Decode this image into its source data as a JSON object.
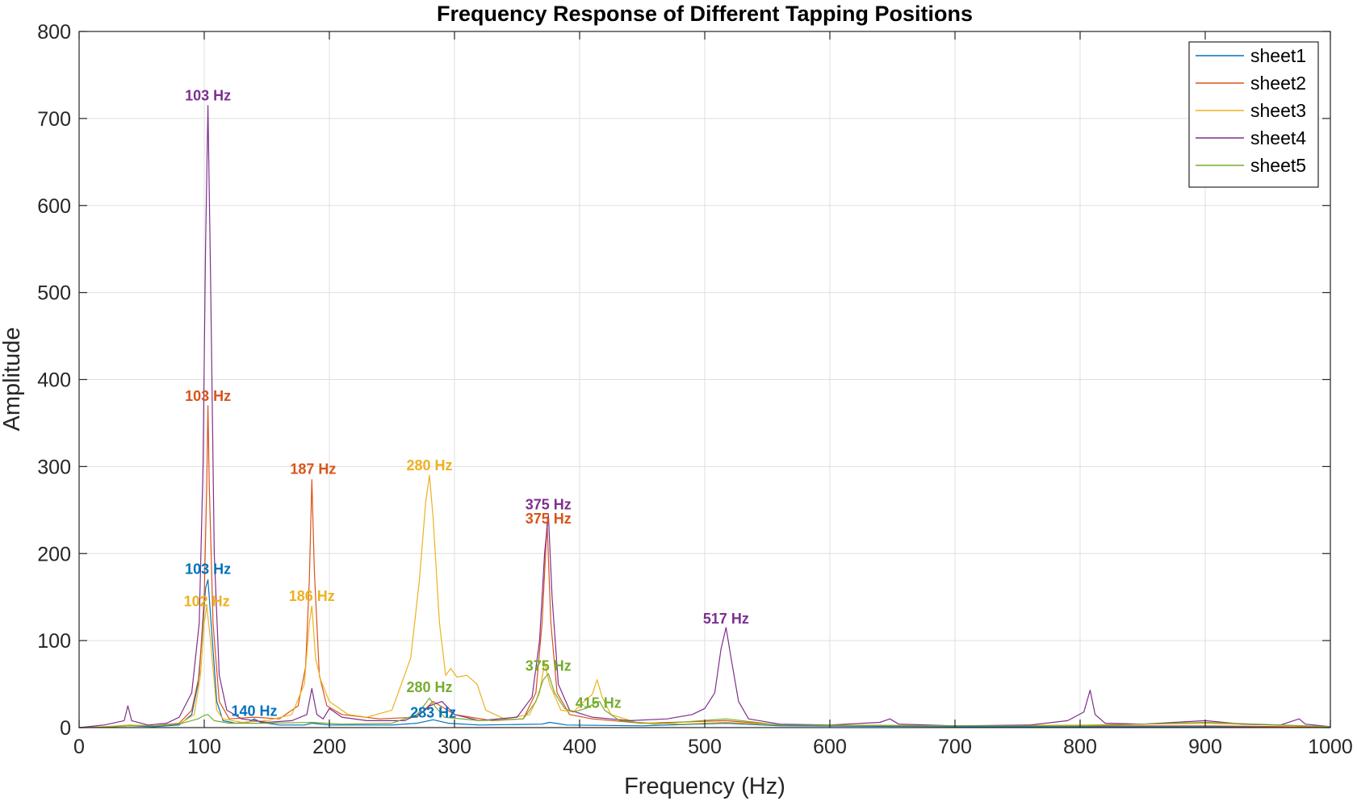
{
  "chart_data": {
    "type": "line",
    "title": "Frequency Response of Different Tapping Positions",
    "xlabel": "Frequency (Hz)",
    "ylabel": "Amplitude",
    "xlim": [
      0,
      1000
    ],
    "ylim": [
      0,
      800
    ],
    "xticks": [
      0,
      100,
      200,
      300,
      400,
      500,
      600,
      700,
      800,
      900,
      1000
    ],
    "yticks": [
      0,
      100,
      200,
      300,
      400,
      500,
      600,
      700,
      800
    ],
    "grid": true,
    "legend_position": "top-right",
    "series": [
      {
        "name": "sheet1",
        "color": "#0072BD",
        "points": [
          [
            0,
            0
          ],
          [
            20,
            0.5
          ],
          [
            40,
            2
          ],
          [
            60,
            1
          ],
          [
            80,
            3
          ],
          [
            90,
            15
          ],
          [
            95,
            50
          ],
          [
            98,
            100
          ],
          [
            101,
            160
          ],
          [
            103,
            170
          ],
          [
            106,
            110
          ],
          [
            110,
            30
          ],
          [
            115,
            8
          ],
          [
            125,
            5
          ],
          [
            135,
            6
          ],
          [
            140,
            10
          ],
          [
            145,
            6
          ],
          [
            160,
            3
          ],
          [
            180,
            3
          ],
          [
            186,
            5
          ],
          [
            200,
            3
          ],
          [
            250,
            3
          ],
          [
            270,
            5
          ],
          [
            283,
            9
          ],
          [
            295,
            5
          ],
          [
            320,
            3
          ],
          [
            370,
            4
          ],
          [
            376,
            6
          ],
          [
            390,
            3
          ],
          [
            450,
            2
          ],
          [
            517,
            5
          ],
          [
            560,
            2
          ],
          [
            700,
            1
          ],
          [
            800,
            1
          ],
          [
            900,
            1
          ],
          [
            1000,
            0.5
          ]
        ]
      },
      {
        "name": "sheet2",
        "color": "#D95319",
        "points": [
          [
            0,
            0
          ],
          [
            20,
            0.5
          ],
          [
            40,
            3
          ],
          [
            60,
            2
          ],
          [
            80,
            5
          ],
          [
            90,
            20
          ],
          [
            96,
            60
          ],
          [
            100,
            150
          ],
          [
            102,
            280
          ],
          [
            103,
            370
          ],
          [
            104,
            280
          ],
          [
            107,
            120
          ],
          [
            112,
            30
          ],
          [
            120,
            10
          ],
          [
            140,
            12
          ],
          [
            160,
            10
          ],
          [
            175,
            25
          ],
          [
            181,
            70
          ],
          [
            184,
            170
          ],
          [
            186,
            285
          ],
          [
            188,
            180
          ],
          [
            192,
            60
          ],
          [
            198,
            25
          ],
          [
            210,
            15
          ],
          [
            240,
            10
          ],
          [
            270,
            12
          ],
          [
            283,
            30
          ],
          [
            300,
            15
          ],
          [
            330,
            8
          ],
          [
            355,
            10
          ],
          [
            365,
            40
          ],
          [
            370,
            120
          ],
          [
            374,
            235
          ],
          [
            377,
            120
          ],
          [
            382,
            40
          ],
          [
            392,
            15
          ],
          [
            410,
            10
          ],
          [
            450,
            5
          ],
          [
            517,
            8
          ],
          [
            560,
            3
          ],
          [
            700,
            2
          ],
          [
            800,
            2
          ],
          [
            900,
            2
          ],
          [
            1000,
            0.5
          ]
        ]
      },
      {
        "name": "sheet3",
        "color": "#EDB120",
        "points": [
          [
            0,
            0
          ],
          [
            20,
            1
          ],
          [
            40,
            3
          ],
          [
            60,
            2
          ],
          [
            80,
            4
          ],
          [
            92,
            15
          ],
          [
            97,
            60
          ],
          [
            100,
            120
          ],
          [
            102,
            140
          ],
          [
            105,
            100
          ],
          [
            110,
            20
          ],
          [
            115,
            10
          ],
          [
            130,
            6
          ],
          [
            150,
            8
          ],
          [
            170,
            15
          ],
          [
            180,
            50
          ],
          [
            184,
            120
          ],
          [
            186,
            140
          ],
          [
            189,
            80
          ],
          [
            193,
            55
          ],
          [
            200,
            30
          ],
          [
            215,
            15
          ],
          [
            230,
            12
          ],
          [
            250,
            20
          ],
          [
            265,
            80
          ],
          [
            272,
            170
          ],
          [
            277,
            260
          ],
          [
            280,
            290
          ],
          [
            283,
            240
          ],
          [
            288,
            120
          ],
          [
            293,
            60
          ],
          [
            297,
            68
          ],
          [
            302,
            58
          ],
          [
            310,
            60
          ],
          [
            318,
            50
          ],
          [
            325,
            20
          ],
          [
            340,
            10
          ],
          [
            360,
            15
          ],
          [
            368,
            40
          ],
          [
            372,
            75
          ],
          [
            376,
            50
          ],
          [
            385,
            20
          ],
          [
            395,
            18
          ],
          [
            402,
            28
          ],
          [
            410,
            38
          ],
          [
            414,
            55
          ],
          [
            418,
            35
          ],
          [
            425,
            15
          ],
          [
            445,
            6
          ],
          [
            480,
            4
          ],
          [
            517,
            6
          ],
          [
            560,
            3
          ],
          [
            700,
            2
          ],
          [
            800,
            3
          ],
          [
            900,
            5
          ],
          [
            1000,
            1
          ]
        ]
      },
      {
        "name": "sheet4",
        "color": "#7E2F8E",
        "points": [
          [
            0,
            0
          ],
          [
            20,
            3
          ],
          [
            36,
            8
          ],
          [
            39,
            25
          ],
          [
            42,
            8
          ],
          [
            55,
            3
          ],
          [
            70,
            5
          ],
          [
            80,
            12
          ],
          [
            90,
            40
          ],
          [
            96,
            120
          ],
          [
            99,
            300
          ],
          [
            101,
            550
          ],
          [
            103,
            715
          ],
          [
            105,
            520
          ],
          [
            108,
            200
          ],
          [
            112,
            60
          ],
          [
            118,
            20
          ],
          [
            130,
            10
          ],
          [
            150,
            6
          ],
          [
            170,
            8
          ],
          [
            182,
            15
          ],
          [
            186,
            45
          ],
          [
            190,
            15
          ],
          [
            195,
            10
          ],
          [
            200,
            22
          ],
          [
            210,
            12
          ],
          [
            230,
            8
          ],
          [
            260,
            8
          ],
          [
            275,
            18
          ],
          [
            280,
            25
          ],
          [
            290,
            30
          ],
          [
            300,
            15
          ],
          [
            320,
            8
          ],
          [
            350,
            12
          ],
          [
            362,
            35
          ],
          [
            368,
            100
          ],
          [
            372,
            200
          ],
          [
            375,
            245
          ],
          [
            378,
            150
          ],
          [
            383,
            50
          ],
          [
            392,
            20
          ],
          [
            410,
            12
          ],
          [
            440,
            8
          ],
          [
            470,
            10
          ],
          [
            490,
            15
          ],
          [
            500,
            22
          ],
          [
            508,
            40
          ],
          [
            513,
            90
          ],
          [
            517,
            115
          ],
          [
            521,
            80
          ],
          [
            527,
            30
          ],
          [
            535,
            10
          ],
          [
            560,
            4
          ],
          [
            600,
            3
          ],
          [
            640,
            6
          ],
          [
            648,
            10
          ],
          [
            655,
            4
          ],
          [
            700,
            2
          ],
          [
            760,
            3
          ],
          [
            790,
            8
          ],
          [
            803,
            18
          ],
          [
            808,
            43
          ],
          [
            812,
            15
          ],
          [
            820,
            5
          ],
          [
            850,
            4
          ],
          [
            900,
            8
          ],
          [
            930,
            4
          ],
          [
            960,
            3
          ],
          [
            975,
            10
          ],
          [
            980,
            4
          ],
          [
            1000,
            1
          ]
        ]
      },
      {
        "name": "sheet5",
        "color": "#77AC30",
        "points": [
          [
            0,
            0
          ],
          [
            20,
            0.5
          ],
          [
            40,
            2
          ],
          [
            60,
            2
          ],
          [
            80,
            4
          ],
          [
            95,
            10
          ],
          [
            100,
            14
          ],
          [
            103,
            15
          ],
          [
            108,
            8
          ],
          [
            120,
            5
          ],
          [
            150,
            5
          ],
          [
            186,
            6
          ],
          [
            210,
            4
          ],
          [
            250,
            5
          ],
          [
            270,
            15
          ],
          [
            277,
            28
          ],
          [
            280,
            34
          ],
          [
            284,
            25
          ],
          [
            292,
            12
          ],
          [
            320,
            8
          ],
          [
            355,
            10
          ],
          [
            365,
            30
          ],
          [
            371,
            55
          ],
          [
            375,
            62
          ],
          [
            380,
            40
          ],
          [
            388,
            22
          ],
          [
            395,
            18
          ],
          [
            405,
            22
          ],
          [
            412,
            28
          ],
          [
            416,
            30
          ],
          [
            420,
            20
          ],
          [
            432,
            8
          ],
          [
            460,
            4
          ],
          [
            517,
            10
          ],
          [
            560,
            3
          ],
          [
            700,
            2
          ],
          [
            800,
            2
          ],
          [
            900,
            6
          ],
          [
            1000,
            1
          ]
        ]
      }
    ],
    "annotations": [
      {
        "text": "103 Hz",
        "x": 103,
        "y": 715,
        "series": "sheet4"
      },
      {
        "text": "103 Hz",
        "x": 103,
        "y": 370,
        "series": "sheet2"
      },
      {
        "text": "187 Hz",
        "x": 187,
        "y": 286,
        "series": "sheet2"
      },
      {
        "text": "280 Hz",
        "x": 280,
        "y": 290,
        "series": "sheet3"
      },
      {
        "text": "375 Hz",
        "x": 375,
        "y": 245,
        "series": "sheet4"
      },
      {
        "text": "375 Hz",
        "x": 375,
        "y": 229,
        "series": "sheet2"
      },
      {
        "text": "103 Hz",
        "x": 103,
        "y": 171,
        "series": "sheet1"
      },
      {
        "text": "102 Hz",
        "x": 102,
        "y": 134,
        "series": "sheet3"
      },
      {
        "text": "186 Hz",
        "x": 186,
        "y": 140,
        "series": "sheet3"
      },
      {
        "text": "517 Hz",
        "x": 517,
        "y": 114,
        "series": "sheet4"
      },
      {
        "text": "375 Hz",
        "x": 375,
        "y": 60,
        "series": "sheet5"
      },
      {
        "text": "280 Hz",
        "x": 280,
        "y": 35,
        "series": "sheet5"
      },
      {
        "text": "415 Hz",
        "x": 415,
        "y": 17,
        "series": "sheet5"
      },
      {
        "text": "140 Hz",
        "x": 140,
        "y": 8,
        "series": "sheet1"
      },
      {
        "text": "283 Hz",
        "x": 283,
        "y": 6,
        "series": "sheet1"
      }
    ]
  }
}
